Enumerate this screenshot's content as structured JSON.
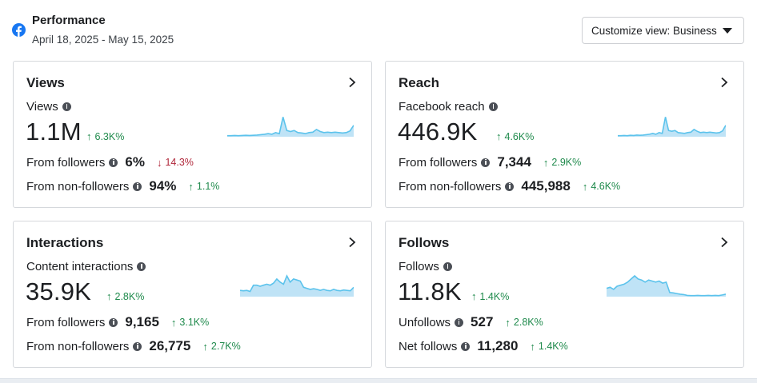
{
  "header": {
    "icon": "facebook-icon",
    "brand_color": "#1877f2",
    "title": "Performance",
    "date_range": "April 18, 2025 - May 15, 2025",
    "customize_label": "Customize view: Business"
  },
  "colors": {
    "up": "#1f8a4c",
    "down": "#b0273a",
    "spark_fill": "#bfe3f6",
    "spark_line": "#5cc3ec"
  },
  "cards": [
    {
      "title": "Views",
      "metric_label": "Views",
      "value": "1.1M",
      "delta": "6.3K%",
      "delta_dir": "up",
      "rows": [
        {
          "label": "From followers",
          "value": "6%",
          "delta": "14.3%",
          "dir": "down"
        },
        {
          "label": "From non-followers",
          "value": "94%",
          "delta": "1.1%",
          "dir": "up"
        }
      ]
    },
    {
      "title": "Reach",
      "metric_label": "Facebook reach",
      "value": "446.9K",
      "delta": "4.6K%",
      "delta_dir": "up",
      "rows": [
        {
          "label": "From followers",
          "value": "7,344",
          "delta": "2.9K%",
          "dir": "up"
        },
        {
          "label": "From non-followers",
          "value": "445,988",
          "delta": "4.6K%",
          "dir": "up"
        }
      ]
    },
    {
      "title": "Interactions",
      "metric_label": "Content interactions",
      "value": "35.9K",
      "delta": "2.8K%",
      "delta_dir": "up",
      "rows": [
        {
          "label": "From followers",
          "value": "9,165",
          "delta": "3.1K%",
          "dir": "up"
        },
        {
          "label": "From non-followers",
          "value": "26,775",
          "delta": "2.7K%",
          "dir": "up"
        }
      ]
    },
    {
      "title": "Follows",
      "metric_label": "Follows",
      "value": "11.8K",
      "delta": "1.4K%",
      "delta_dir": "up",
      "rows": [
        {
          "label": "Unfollows",
          "value": "527",
          "delta": "2.8K%",
          "dir": "up"
        },
        {
          "label": "Net follows",
          "value": "11,280",
          "delta": "1.4K%",
          "dir": "up"
        }
      ]
    }
  ],
  "sparklines": [
    [
      0.05,
      0.05,
      0.06,
      0.05,
      0.06,
      0.07,
      0.06,
      0.07,
      0.08,
      0.1,
      0.12,
      0.15,
      0.12,
      0.2,
      0.15,
      0.95,
      0.3,
      0.25,
      0.3,
      0.2,
      0.18,
      0.15,
      0.2,
      0.22,
      0.35,
      0.25,
      0.2,
      0.22,
      0.2,
      0.22,
      0.2,
      0.18,
      0.2,
      0.28,
      0.55
    ],
    [
      0.05,
      0.05,
      0.06,
      0.05,
      0.07,
      0.06,
      0.08,
      0.07,
      0.08,
      0.1,
      0.12,
      0.16,
      0.12,
      0.2,
      0.16,
      0.95,
      0.3,
      0.26,
      0.3,
      0.2,
      0.18,
      0.16,
      0.2,
      0.22,
      0.35,
      0.26,
      0.2,
      0.22,
      0.2,
      0.22,
      0.2,
      0.18,
      0.2,
      0.28,
      0.55
    ],
    [
      0.3,
      0.28,
      0.3,
      0.25,
      0.55,
      0.55,
      0.5,
      0.55,
      0.6,
      0.55,
      0.65,
      0.85,
      0.7,
      0.6,
      1.0,
      0.7,
      0.85,
      0.8,
      0.75,
      0.45,
      0.4,
      0.35,
      0.38,
      0.35,
      0.3,
      0.35,
      0.3,
      0.28,
      0.35,
      0.3,
      0.28,
      0.32,
      0.3,
      0.28,
      0.45
    ],
    [
      0.4,
      0.45,
      0.35,
      0.5,
      0.55,
      0.6,
      0.7,
      0.85,
      1.0,
      0.85,
      0.8,
      0.7,
      0.8,
      0.75,
      0.7,
      0.75,
      0.65,
      0.7,
      0.2,
      0.18,
      0.15,
      0.12,
      0.1,
      0.06,
      0.05,
      0.05,
      0.06,
      0.05,
      0.05,
      0.06,
      0.05,
      0.06,
      0.05,
      0.08,
      0.12
    ]
  ]
}
